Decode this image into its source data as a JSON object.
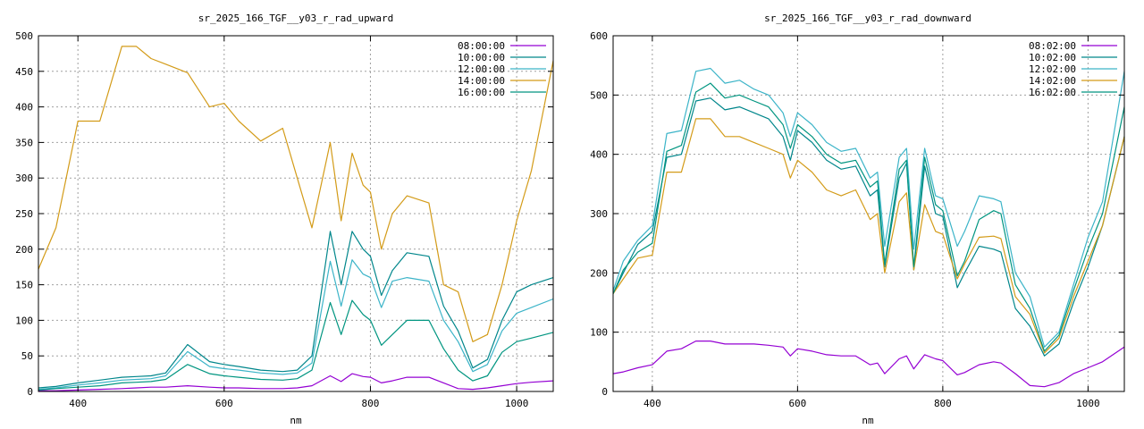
{
  "chart_data": [
    {
      "type": "line",
      "title": "sr_2025_166_TGF__y03_r_rad_upward",
      "xlabel": "nm",
      "ylabel": "",
      "xlim": [
        346,
        1050
      ],
      "ylim": [
        0,
        500
      ],
      "x_ticks": [
        400,
        600,
        800,
        1000
      ],
      "y_ticks": [
        0,
        50,
        100,
        150,
        200,
        250,
        300,
        350,
        400,
        450,
        500
      ],
      "grid": true,
      "legend_position": "top-right",
      "x": [
        346,
        370,
        400,
        430,
        460,
        480,
        500,
        520,
        550,
        580,
        600,
        620,
        650,
        680,
        700,
        720,
        745,
        760,
        775,
        790,
        800,
        815,
        830,
        850,
        880,
        900,
        920,
        940,
        960,
        980,
        1000,
        1020,
        1050
      ],
      "series": [
        {
          "name": "08:00:00",
          "color": "#9400d3",
          "values": [
            1,
            1,
            2,
            3,
            4,
            5,
            6,
            6,
            8,
            6,
            5,
            5,
            4,
            4,
            5,
            8,
            22,
            14,
            25,
            21,
            20,
            12,
            15,
            20,
            20,
            12,
            4,
            3,
            5,
            8,
            11,
            13,
            15
          ]
        },
        {
          "name": "10:00:00",
          "color": "#00868b",
          "values": [
            5,
            7,
            12,
            16,
            20,
            21,
            22,
            26,
            66,
            42,
            38,
            35,
            30,
            28,
            30,
            50,
            225,
            150,
            225,
            200,
            190,
            135,
            170,
            195,
            190,
            120,
            85,
            33,
            45,
            100,
            140,
            150,
            160
          ]
        },
        {
          "name": "12:00:00",
          "color": "#3cb4c8",
          "values": [
            3,
            5,
            9,
            12,
            16,
            17,
            18,
            22,
            56,
            35,
            32,
            30,
            26,
            24,
            26,
            40,
            183,
            120,
            185,
            165,
            160,
            118,
            155,
            160,
            155,
            100,
            70,
            28,
            38,
            85,
            110,
            118,
            130
          ]
        },
        {
          "name": "14:00:00",
          "color": "#d39b18",
          "values": [
            172,
            230,
            380,
            380,
            485,
            485,
            468,
            460,
            448,
            400,
            405,
            380,
            352,
            370,
            300,
            230,
            350,
            240,
            335,
            290,
            280,
            200,
            250,
            275,
            265,
            150,
            140,
            70,
            80,
            150,
            240,
            310,
            465
          ]
        },
        {
          "name": "16:00:00",
          "color": "#009580",
          "values": [
            2,
            4,
            6,
            8,
            12,
            13,
            14,
            17,
            38,
            25,
            22,
            20,
            17,
            16,
            18,
            30,
            125,
            80,
            128,
            108,
            100,
            65,
            80,
            100,
            100,
            60,
            30,
            15,
            22,
            55,
            70,
            75,
            83
          ]
        }
      ]
    },
    {
      "type": "line",
      "title": "sr_2025_166_TGF__y03_r_rad_downward",
      "xlabel": "nm",
      "ylabel": "",
      "xlim": [
        346,
        1050
      ],
      "ylim": [
        0,
        600
      ],
      "x_ticks": [
        400,
        600,
        800,
        1000
      ],
      "y_ticks": [
        0,
        100,
        200,
        300,
        400,
        500,
        600
      ],
      "grid": true,
      "legend_position": "top-right",
      "x": [
        346,
        360,
        380,
        400,
        420,
        440,
        460,
        480,
        500,
        520,
        540,
        560,
        580,
        590,
        600,
        620,
        640,
        660,
        680,
        700,
        710,
        720,
        740,
        750,
        760,
        775,
        790,
        800,
        820,
        830,
        850,
        870,
        880,
        900,
        920,
        940,
        960,
        980,
        1000,
        1020,
        1050
      ],
      "series": [
        {
          "name": "08:02:00",
          "color": "#9400d3",
          "values": [
            30,
            33,
            40,
            45,
            68,
            72,
            85,
            85,
            80,
            80,
            80,
            78,
            75,
            60,
            72,
            68,
            62,
            60,
            60,
            45,
            48,
            30,
            55,
            60,
            38,
            62,
            55,
            52,
            28,
            32,
            45,
            50,
            48,
            30,
            10,
            8,
            15,
            30,
            40,
            50,
            75
          ]
        },
        {
          "name": "10:02:00",
          "color": "#00868b",
          "values": [
            165,
            200,
            248,
            270,
            395,
            400,
            490,
            495,
            475,
            480,
            470,
            460,
            430,
            390,
            440,
            420,
            390,
            375,
            380,
            330,
            340,
            210,
            360,
            385,
            205,
            380,
            300,
            295,
            175,
            200,
            245,
            240,
            235,
            140,
            110,
            60,
            80,
            150,
            210,
            280,
            430
          ]
        },
        {
          "name": "12:02:00",
          "color": "#3cb4c8",
          "values": [
            170,
            220,
            255,
            280,
            435,
            440,
            540,
            545,
            520,
            525,
            510,
            500,
            470,
            430,
            470,
            450,
            420,
            405,
            410,
            360,
            370,
            245,
            395,
            410,
            240,
            410,
            330,
            325,
            245,
            270,
            330,
            325,
            320,
            200,
            160,
            75,
            100,
            180,
            260,
            320,
            540
          ]
        },
        {
          "name": "14:02:00",
          "color": "#d39b18",
          "values": [
            165,
            190,
            225,
            230,
            370,
            370,
            460,
            460,
            430,
            430,
            420,
            410,
            400,
            360,
            390,
            370,
            340,
            330,
            340,
            290,
            300,
            200,
            320,
            335,
            205,
            315,
            270,
            265,
            190,
            215,
            260,
            262,
            258,
            160,
            130,
            65,
            90,
            160,
            220,
            280,
            430
          ]
        },
        {
          "name": "16:02:00",
          "color": "#009580",
          "values": [
            165,
            205,
            235,
            250,
            405,
            415,
            505,
            520,
            495,
            500,
            490,
            480,
            450,
            410,
            450,
            430,
            400,
            385,
            390,
            345,
            355,
            215,
            375,
            390,
            210,
            395,
            315,
            305,
            195,
            220,
            290,
            305,
            300,
            180,
            140,
            68,
            95,
            170,
            240,
            300,
            480
          ]
        }
      ]
    }
  ]
}
